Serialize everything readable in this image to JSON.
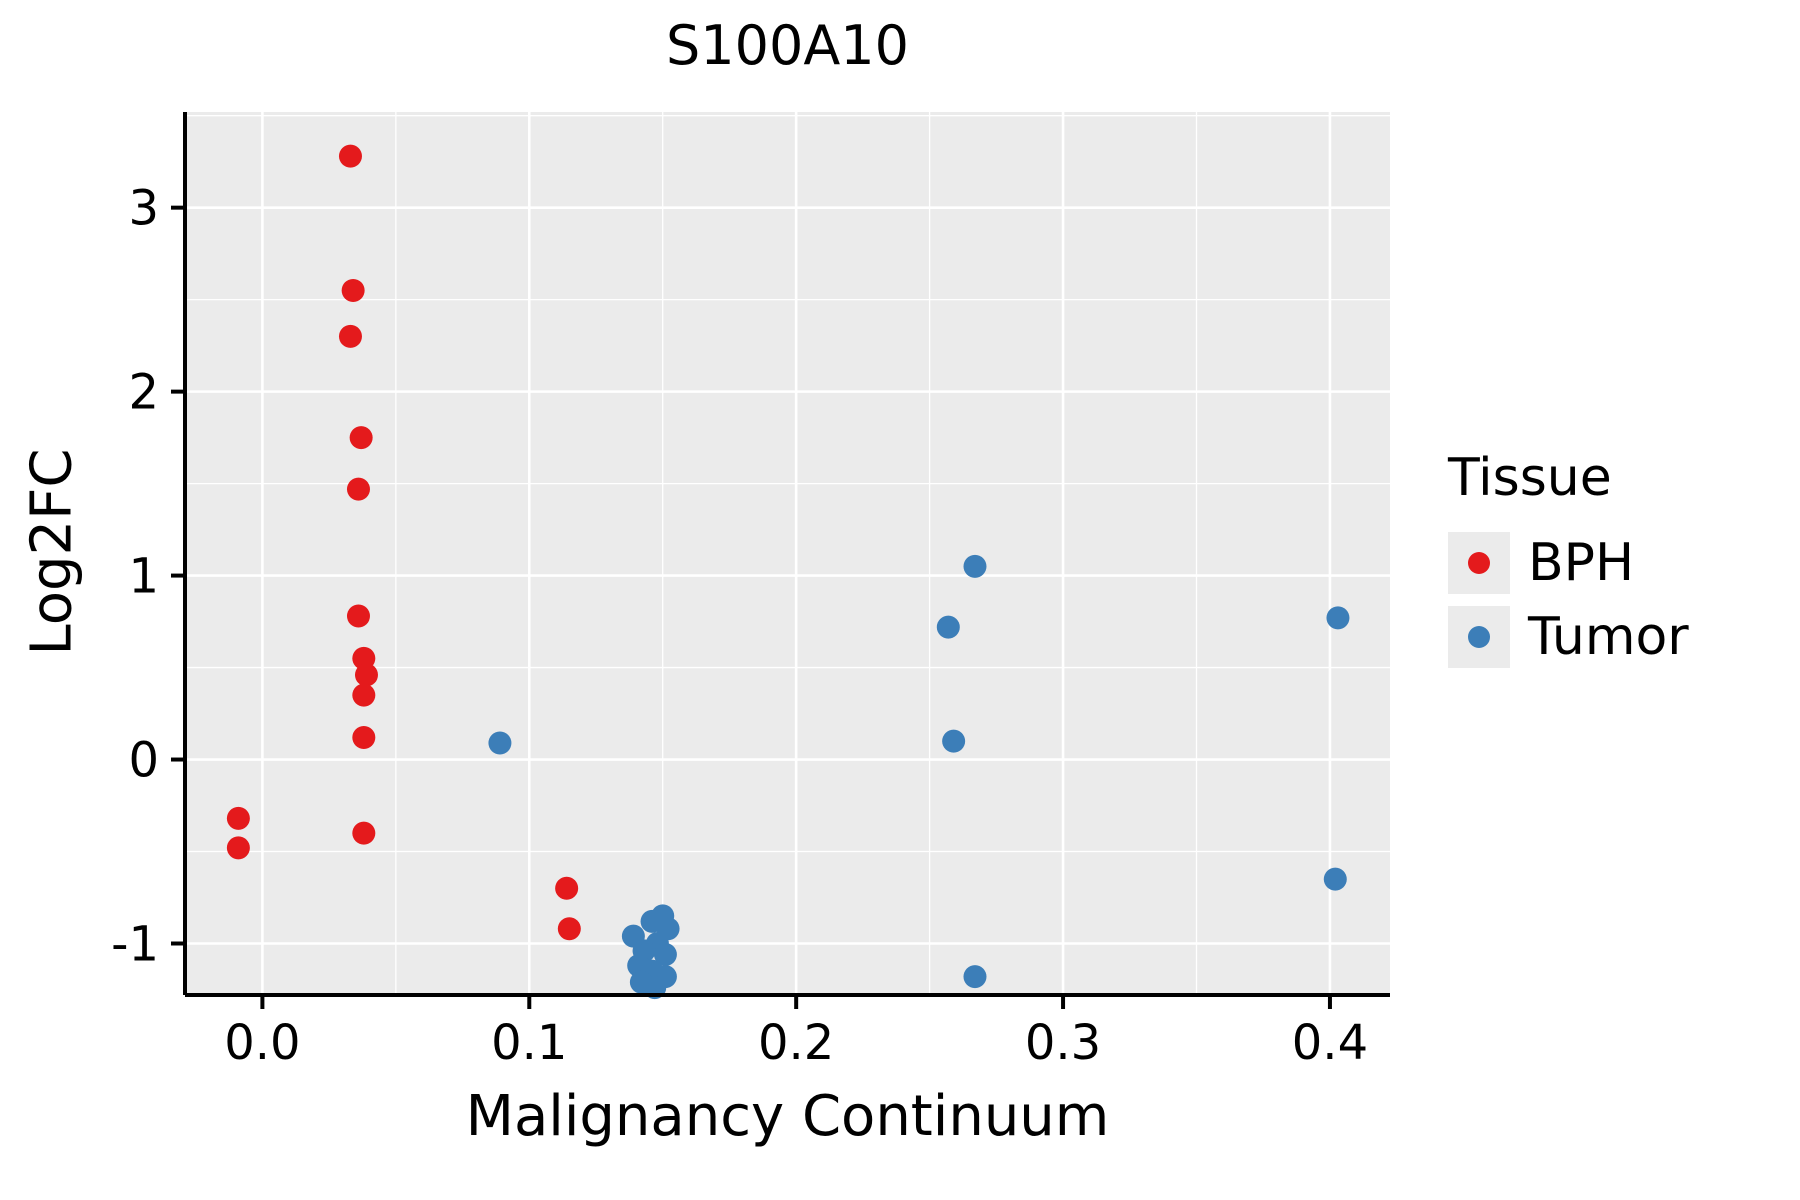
{
  "title": "S100A10",
  "legend": {
    "title": "Tissue",
    "entries": [
      {
        "label": "BPH",
        "color": "#e41a1c"
      },
      {
        "label": "Tumor",
        "color": "#3c7eb8"
      }
    ]
  },
  "colors": {
    "panel_background": "#ebebeb",
    "grid": "#ffffff",
    "axis": "#000000",
    "bph": "#e41a1c",
    "tumor": "#3c7eb8"
  },
  "chart_data": {
    "type": "scatter",
    "title": "S100A10",
    "xlabel": "Malignancy Continuum",
    "ylabel": "Log2FC",
    "xlim": [
      -0.029,
      0.4225
    ],
    "ylim": [
      -1.28,
      3.52
    ],
    "xticks": [
      0.0,
      0.1,
      0.2,
      0.3,
      0.4
    ],
    "xtick_labels": [
      "0.0",
      "0.1",
      "0.2",
      "0.3",
      "0.4"
    ],
    "yticks": [
      -1,
      0,
      1,
      2,
      3
    ],
    "ytick_labels": [
      "-1",
      "0",
      "1",
      "2",
      "3"
    ],
    "xticks_minor": [
      0.05,
      0.15,
      0.25,
      0.35
    ],
    "yticks_minor": [
      -0.5,
      0.5,
      1.5,
      2.5,
      3.5
    ],
    "grid": true,
    "legend_position": "right",
    "legend_title": "Tissue",
    "series": [
      {
        "name": "BPH",
        "color": "#e41a1c",
        "points": [
          [
            -0.009,
            -0.32
          ],
          [
            -0.009,
            -0.48
          ],
          [
            0.033,
            3.28
          ],
          [
            0.034,
            2.55
          ],
          [
            0.033,
            2.3
          ],
          [
            0.037,
            1.75
          ],
          [
            0.036,
            1.47
          ],
          [
            0.036,
            0.78
          ],
          [
            0.038,
            0.55
          ],
          [
            0.039,
            0.46
          ],
          [
            0.038,
            0.35
          ],
          [
            0.038,
            0.12
          ],
          [
            0.038,
            -0.4
          ],
          [
            0.114,
            -0.7
          ],
          [
            0.115,
            -0.92
          ]
        ]
      },
      {
        "name": "Tumor",
        "color": "#3c7eb8",
        "points": [
          [
            0.089,
            0.09
          ],
          [
            0.267,
            1.05
          ],
          [
            0.257,
            0.72
          ],
          [
            0.259,
            0.1
          ],
          [
            0.267,
            -1.18
          ],
          [
            0.403,
            0.77
          ],
          [
            0.402,
            -0.65
          ],
          [
            0.15,
            -0.85
          ],
          [
            0.146,
            -0.88
          ],
          [
            0.152,
            -0.92
          ],
          [
            0.139,
            -0.96
          ],
          [
            0.148,
            -1.0
          ],
          [
            0.143,
            -1.04
          ],
          [
            0.151,
            -1.06
          ],
          [
            0.141,
            -1.12
          ],
          [
            0.146,
            -1.15
          ],
          [
            0.151,
            -1.18
          ],
          [
            0.142,
            -1.21
          ],
          [
            0.147,
            -1.24
          ]
        ]
      }
    ]
  }
}
